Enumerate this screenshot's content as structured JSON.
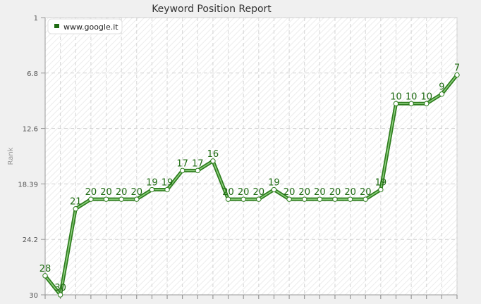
{
  "chart_data": {
    "type": "line",
    "title": "Keyword Position Report",
    "ylabel": "Rank",
    "xlabel": "",
    "y_reversed": true,
    "ylim": [
      1,
      30
    ],
    "y_ticks": [
      "1",
      "6.8",
      "12.6",
      "18.39",
      "24.2",
      "30"
    ],
    "grid": true,
    "legend_position": "top-left",
    "colors": {
      "line": "#2e7d1e",
      "line_highlight": "#8fd07f",
      "marker_fill": "#ffffff",
      "label": "#1e6b12",
      "legend_icon": "#1e6b12"
    },
    "series": [
      {
        "name": "www.google.it",
        "values": [
          28,
          30,
          21,
          20,
          20,
          20,
          20,
          19,
          19,
          17,
          17,
          16,
          20,
          20,
          20,
          19,
          20,
          20,
          20,
          20,
          20,
          20,
          19,
          10,
          10,
          10,
          9,
          7
        ]
      }
    ]
  }
}
